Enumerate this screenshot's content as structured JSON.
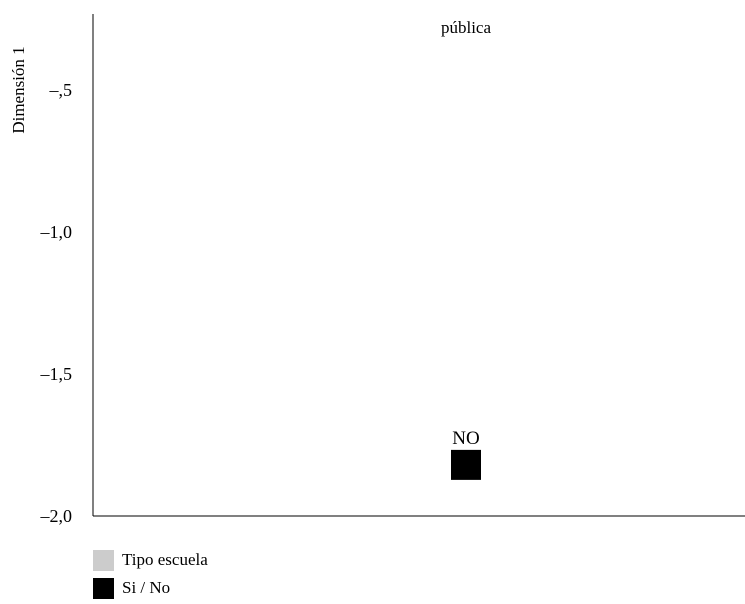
{
  "chart_data": {
    "type": "scatter",
    "title": "",
    "xlabel": "",
    "ylabel": "Dimensión 1",
    "ylim": [
      -2.0,
      -0.2
    ],
    "y_ticks": [
      {
        "value": -0.5,
        "label": "–,5"
      },
      {
        "value": -1.0,
        "label": "–1,0"
      },
      {
        "value": -1.5,
        "label": "–1,5"
      },
      {
        "value": -2.0,
        "label": "–2,0"
      }
    ],
    "grid": false,
    "series": [
      {
        "name": "Tipo escuela",
        "color": "#cccccc",
        "points": [
          {
            "label": "pública",
            "x": 0,
            "y": -0.22
          }
        ]
      },
      {
        "name": "Si / No",
        "color": "#000000",
        "points": [
          {
            "label": "NO",
            "x": 0,
            "y": -1.82
          }
        ]
      }
    ],
    "legend_placement": "bottom-left"
  }
}
